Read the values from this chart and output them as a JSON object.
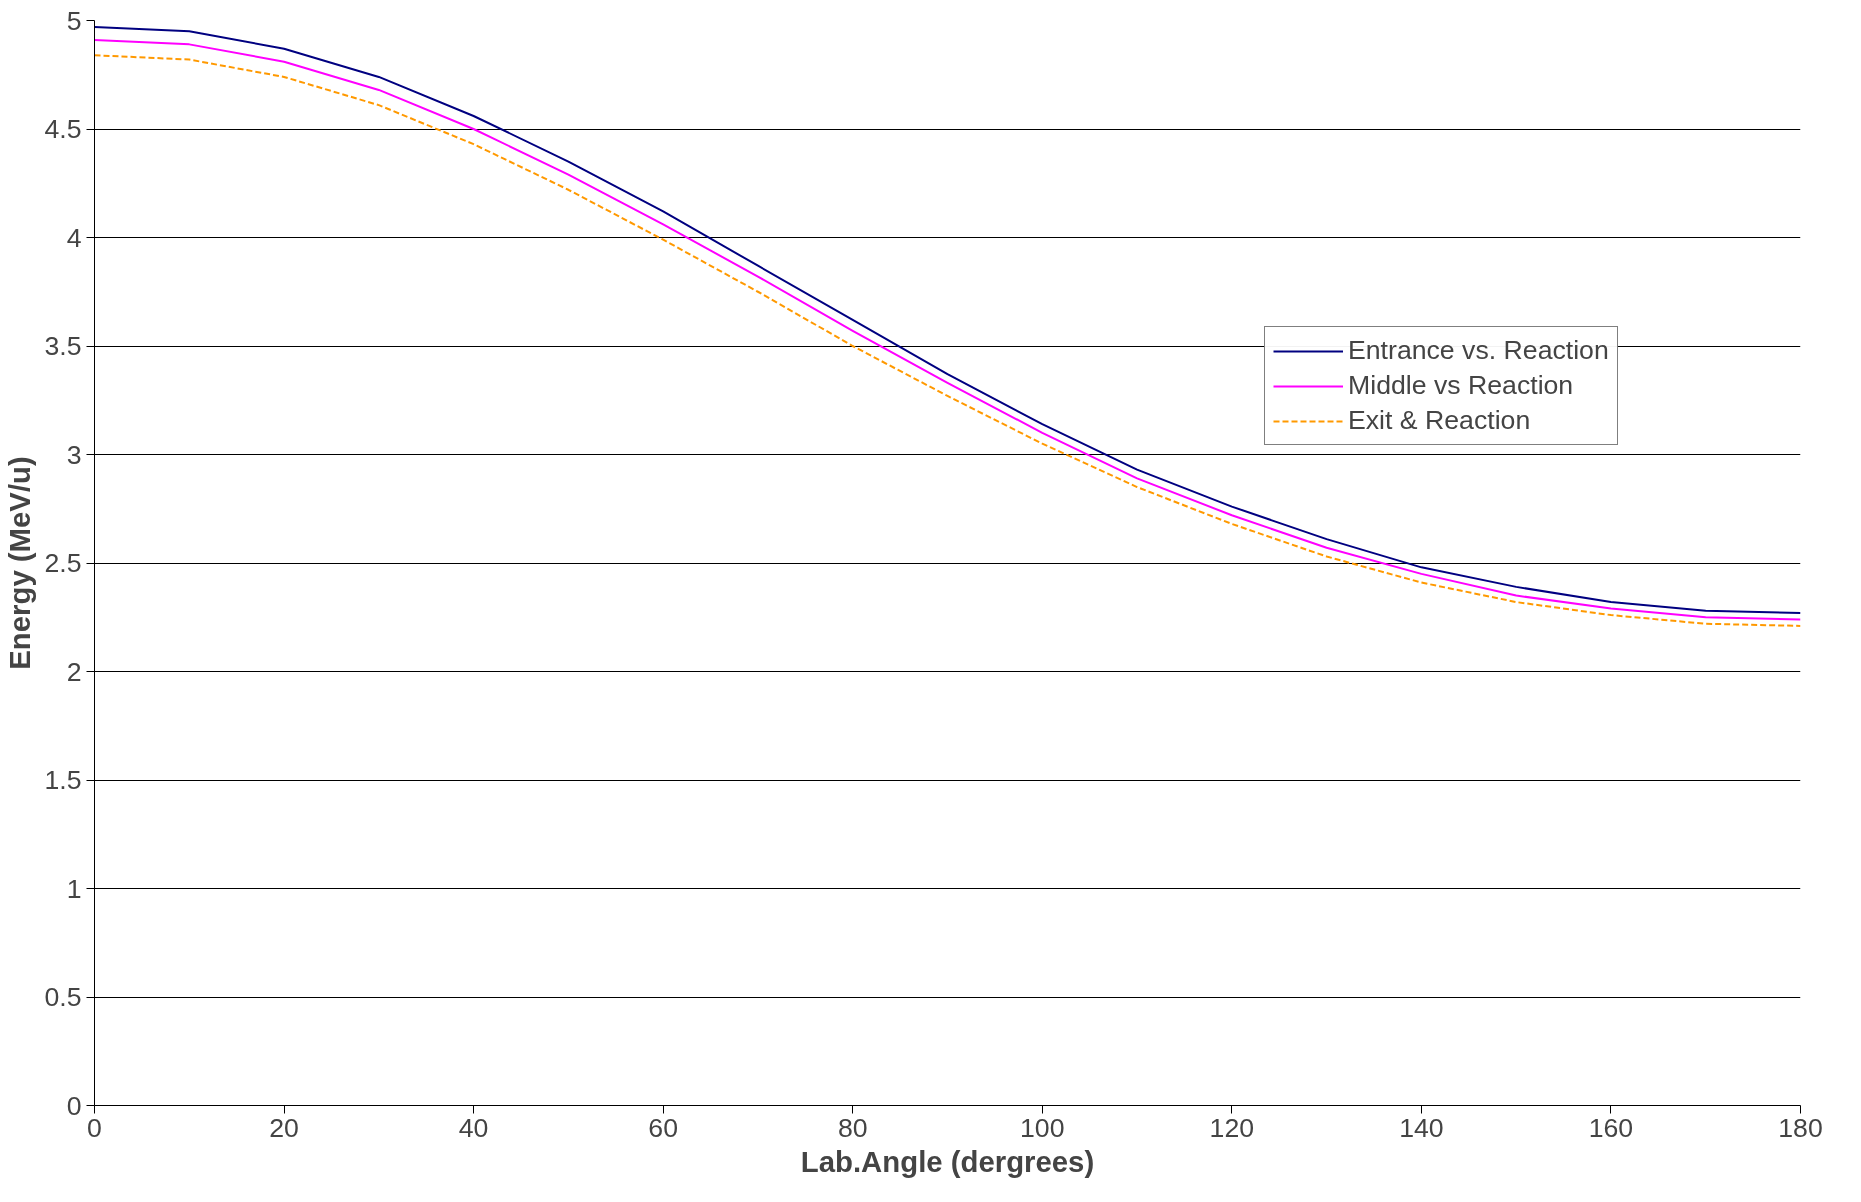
{
  "chart_data": {
    "type": "line",
    "xlabel": "Lab.Angle (dergrees)",
    "ylabel": "Energy (MeV/u)",
    "x": [
      0,
      10,
      20,
      30,
      40,
      50,
      60,
      70,
      80,
      90,
      100,
      110,
      120,
      130,
      140,
      150,
      160,
      170,
      180
    ],
    "series": [
      {
        "name": "Entrance vs. Reaction",
        "color": "#000080",
        "line_style": "solid",
        "values": [
          4.97,
          4.95,
          4.87,
          4.74,
          4.56,
          4.35,
          4.12,
          3.87,
          3.62,
          3.37,
          3.14,
          2.93,
          2.76,
          2.61,
          2.48,
          2.39,
          2.32,
          2.28,
          2.27
        ]
      },
      {
        "name": "Middle vs Reaction",
        "color": "#ff00ff",
        "line_style": "solid",
        "values": [
          4.91,
          4.89,
          4.81,
          4.68,
          4.5,
          4.29,
          4.06,
          3.82,
          3.57,
          3.33,
          3.1,
          2.89,
          2.72,
          2.57,
          2.45,
          2.35,
          2.29,
          2.25,
          2.24
        ]
      },
      {
        "name": "Exit & Reaction",
        "color": "#ff9900",
        "line_style": "dashed",
        "values": [
          4.84,
          4.82,
          4.74,
          4.61,
          4.43,
          4.22,
          3.99,
          3.75,
          3.5,
          3.27,
          3.05,
          2.85,
          2.68,
          2.53,
          2.41,
          2.32,
          2.26,
          2.22,
          2.21
        ]
      }
    ],
    "xlim": [
      0,
      180
    ],
    "xticks": [
      0,
      20,
      40,
      60,
      80,
      100,
      120,
      140,
      160,
      180
    ],
    "ylim": [
      0,
      5
    ],
    "yticks": [
      0,
      0.5,
      1,
      1.5,
      2,
      2.5,
      3,
      3.5,
      4,
      4.5,
      5
    ],
    "grid": "y",
    "legend": "top right",
    "marker": "none"
  }
}
